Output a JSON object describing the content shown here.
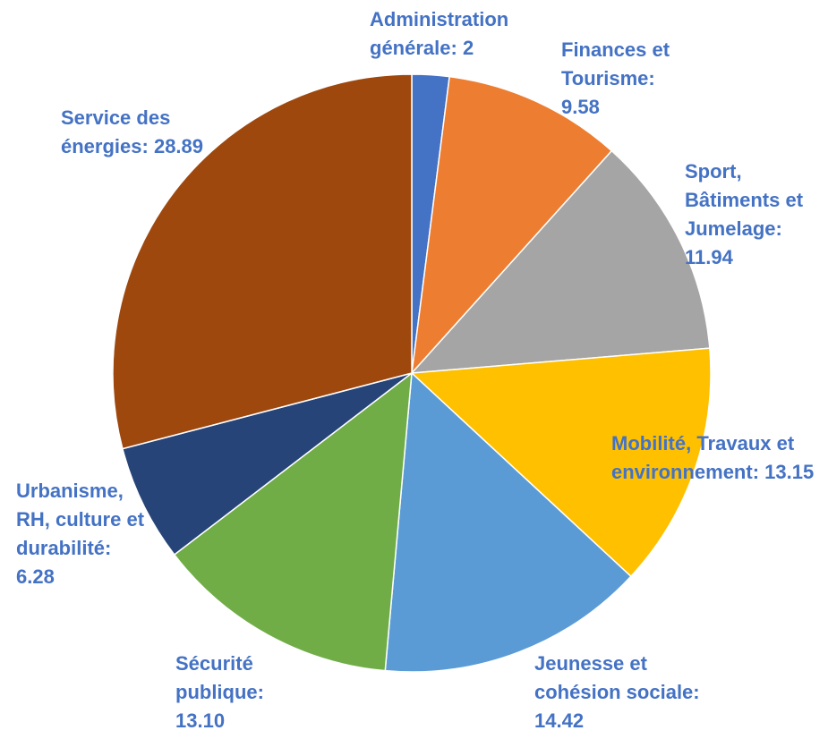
{
  "chart_data": {
    "type": "pie",
    "categories": [
      "Administration générale:",
      "Finances et Tourisme:",
      "Sport, Bâtiments et Jumelage:",
      "Mobilité, Travaux et environnement:",
      "Jeunesse et cohésion sociale:",
      "Sécurité publique:",
      "Urbanisme, RH, culture et durabilité:",
      "Service des énergies:"
    ],
    "values": [
      2,
      9.58,
      11.94,
      13.15,
      14.42,
      13.1,
      6.28,
      28.89
    ],
    "value_labels": [
      "2",
      "9.58",
      "11.94",
      "13.15",
      "14.42",
      "13.10",
      "6.28",
      "28.89"
    ],
    "colors": [
      "#4472c4",
      "#ed7d31",
      "#a5a5a5",
      "#ffc000",
      "#5b9bd5",
      "#70ad47",
      "#264478",
      "#9e480e"
    ],
    "label_color": "#4472c4"
  }
}
